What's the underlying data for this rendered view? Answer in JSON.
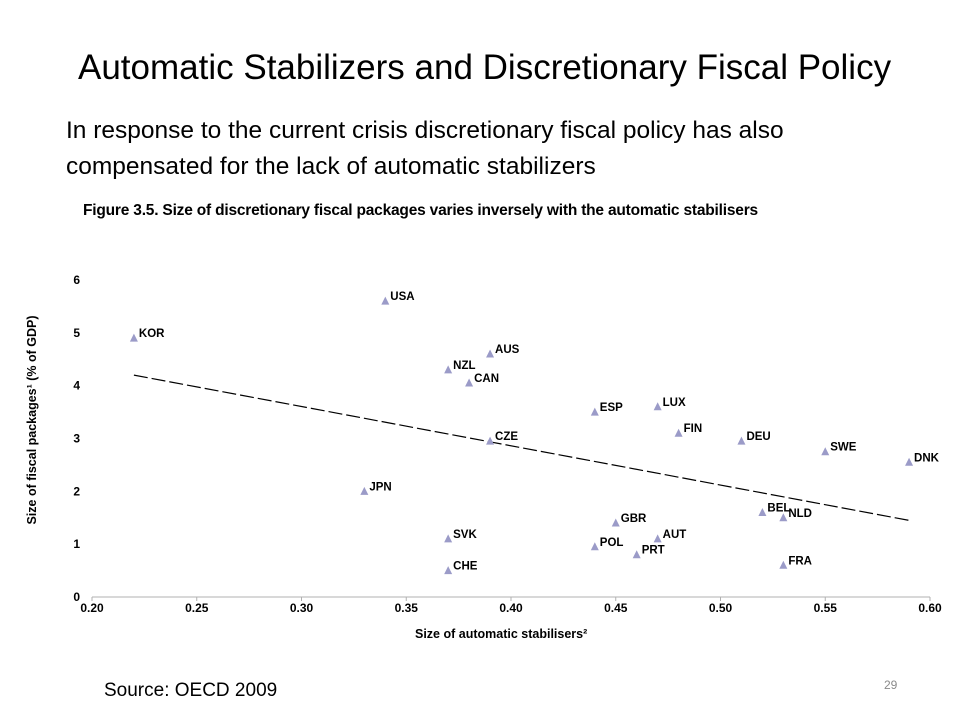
{
  "slide": {
    "title": "Automatic Stabilizers and Discretionary Fiscal Policy",
    "subtitle_lines": [
      "In response to the current crisis discretionary fiscal policy has also",
      "compensated for the lack of automatic stabilizers"
    ],
    "source": "Source: OECD 2009",
    "page_number": "29"
  },
  "chart_data": {
    "type": "scatter",
    "title": "Figure 3.5. Size of discretionary fiscal packages varies inversely with the automatic stabilisers",
    "xlabel": "Size of automatic stabilisers²",
    "ylabel": "Size of fiscal packages¹ (% of GDP)",
    "xlim": [
      0.2,
      0.6
    ],
    "ylim": [
      0,
      6
    ],
    "xticks": [
      "0.20",
      "0.25",
      "0.30",
      "0.35",
      "0.40",
      "0.45",
      "0.50",
      "0.55",
      "0.60"
    ],
    "yticks": [
      "0",
      "1",
      "2",
      "3",
      "4",
      "5",
      "6"
    ],
    "grid": false,
    "marker_color": "#9b9bc8",
    "points": [
      {
        "label": "KOR",
        "x": 0.22,
        "y": 4.9
      },
      {
        "label": "USA",
        "x": 0.34,
        "y": 5.6
      },
      {
        "label": "JPN",
        "x": 0.33,
        "y": 2.0
      },
      {
        "label": "NZL",
        "x": 0.37,
        "y": 4.3
      },
      {
        "label": "CAN",
        "x": 0.38,
        "y": 4.05
      },
      {
        "label": "AUS",
        "x": 0.39,
        "y": 4.6
      },
      {
        "label": "CZE",
        "x": 0.39,
        "y": 2.95
      },
      {
        "label": "SVK",
        "x": 0.37,
        "y": 1.1
      },
      {
        "label": "CHE",
        "x": 0.37,
        "y": 0.5
      },
      {
        "label": "ESP",
        "x": 0.44,
        "y": 3.5
      },
      {
        "label": "GBR",
        "x": 0.45,
        "y": 1.4
      },
      {
        "label": "POL",
        "x": 0.44,
        "y": 0.95
      },
      {
        "label": "PRT",
        "x": 0.46,
        "y": 0.8
      },
      {
        "label": "LUX",
        "x": 0.47,
        "y": 3.6
      },
      {
        "label": "FIN",
        "x": 0.48,
        "y": 3.1
      },
      {
        "label": "AUT",
        "x": 0.47,
        "y": 1.1
      },
      {
        "label": "DEU",
        "x": 0.51,
        "y": 2.95
      },
      {
        "label": "BEL",
        "x": 0.52,
        "y": 1.6
      },
      {
        "label": "NLD",
        "x": 0.53,
        "y": 1.5
      },
      {
        "label": "FRA",
        "x": 0.53,
        "y": 0.6
      },
      {
        "label": "SWE",
        "x": 0.55,
        "y": 2.75
      },
      {
        "label": "DNK",
        "x": 0.59,
        "y": 2.55
      }
    ],
    "trendline": {
      "x": [
        0.22,
        0.59
      ],
      "y": [
        4.2,
        1.45
      ],
      "style": "dashed"
    }
  }
}
